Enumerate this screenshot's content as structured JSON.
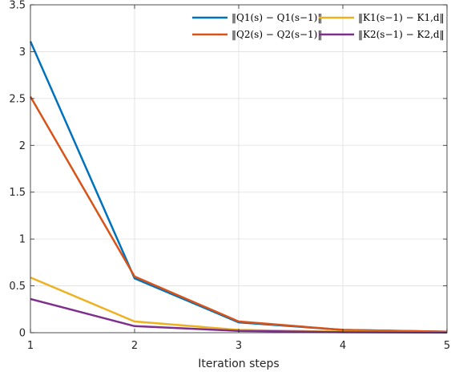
{
  "chart_data": {
    "type": "line",
    "xlabel": "Iteration steps",
    "ylabel": "",
    "x": [
      1,
      2,
      3,
      4,
      5
    ],
    "xlim": [
      1,
      5
    ],
    "ylim": [
      0,
      3.5
    ],
    "xticks": [
      "1",
      "2",
      "3",
      "4",
      "5"
    ],
    "yticks": [
      "0",
      "0.5",
      "1",
      "1.5",
      "2",
      "2.5",
      "3",
      "3.5"
    ],
    "grid": true,
    "legend_position": "top-right",
    "series": [
      {
        "name": "‖Q1(s) − Q1(s−1)‖",
        "color": "#0072BD",
        "values": [
          3.11,
          0.58,
          0.11,
          0.03,
          0.01
        ]
      },
      {
        "name": "‖Q2(s) − Q2(s−1)‖",
        "color": "#D95319",
        "values": [
          2.52,
          0.6,
          0.12,
          0.03,
          0.01
        ]
      },
      {
        "name": "‖K1(s−1) − K1,d‖",
        "color": "#EDB120",
        "values": [
          0.59,
          0.12,
          0.03,
          0.01,
          0.005
        ]
      },
      {
        "name": "‖K2(s−1) − K2,d‖",
        "color": "#7E2F8E",
        "values": [
          0.36,
          0.07,
          0.02,
          0.005,
          0.002
        ]
      }
    ]
  }
}
